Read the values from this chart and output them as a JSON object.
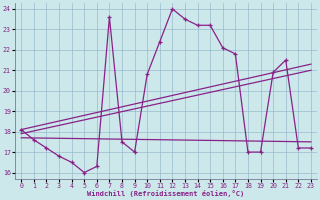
{
  "xlabel": "Windchill (Refroidissement éolien,°C)",
  "bg_color": "#cce8ea",
  "line_color": "#882288",
  "grid_color": "#99bbcc",
  "xlim": [
    -0.5,
    23.5
  ],
  "ylim": [
    15.7,
    24.3
  ],
  "yticks": [
    16,
    17,
    18,
    19,
    20,
    21,
    22,
    23,
    24
  ],
  "xticks": [
    0,
    1,
    2,
    3,
    4,
    5,
    6,
    7,
    8,
    9,
    10,
    11,
    12,
    13,
    14,
    15,
    16,
    17,
    18,
    19,
    20,
    21,
    22,
    23
  ],
  "main_x": [
    0,
    1,
    2,
    3,
    4,
    5,
    6,
    7,
    8,
    9,
    10,
    11,
    12,
    13,
    14,
    15,
    16,
    17,
    18,
    19,
    20,
    21,
    22,
    23
  ],
  "main_y": [
    18.1,
    17.6,
    17.2,
    16.8,
    16.5,
    16.0,
    16.3,
    23.6,
    17.5,
    17.0,
    20.8,
    22.4,
    24.0,
    23.5,
    23.2,
    23.2,
    22.1,
    21.8,
    17.0,
    17.0,
    20.9,
    21.5,
    17.2,
    17.2
  ],
  "line2_x": [
    0,
    23
  ],
  "line2_y": [
    17.7,
    17.5
  ],
  "line3_x": [
    0,
    23
  ],
  "line3_y": [
    17.9,
    21.0
  ],
  "line4_x": [
    0,
    23
  ],
  "line4_y": [
    18.1,
    21.3
  ]
}
